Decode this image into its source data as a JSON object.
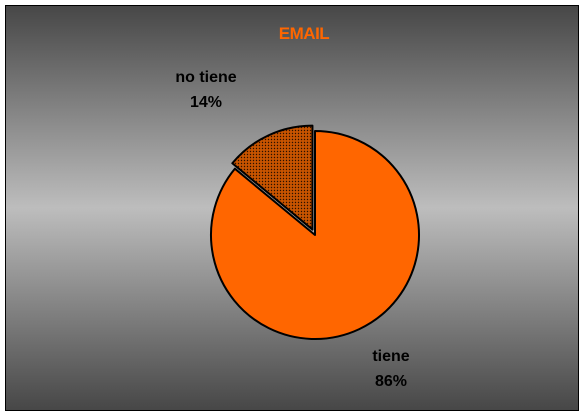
{
  "chart_data": {
    "type": "pie",
    "title": "EMAIL",
    "slices": [
      {
        "label": "no tiene",
        "value": 14,
        "value_label": "14%",
        "color": "#c85400",
        "pattern": "dotted",
        "exploded": true
      },
      {
        "label": "tiene",
        "value": 86,
        "value_label": "86%",
        "color": "#ff6600",
        "exploded": false
      }
    ],
    "start": "12 o'clock, counterclockwise from top",
    "legend": "none",
    "background": "gray gradient"
  }
}
